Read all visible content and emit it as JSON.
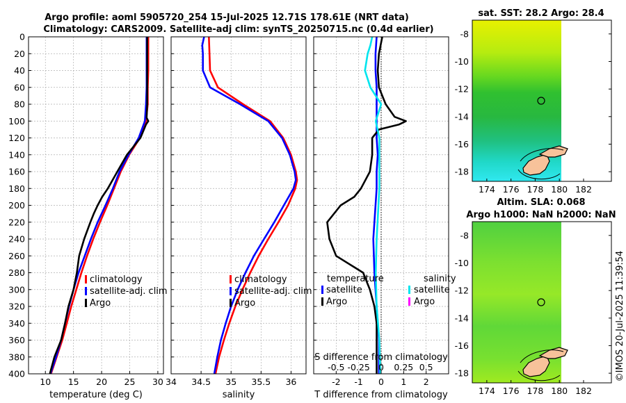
{
  "header": {
    "title_line1": "Argo profile: aoml 5905720_254 15-Jul-2025 12.71S 178.61E (NRT data)",
    "title_line2": "Climatology: CARS2009. Satellite-adj clim: synTS_20250715.nc (0.4d earlier)",
    "watermark": "©IMOS 20-Jul-2025 11:39:54"
  },
  "chart_data": [
    {
      "type": "line",
      "name": "temperature-panel",
      "xlabel": "temperature (deg C)",
      "ylabel": "",
      "xlim": [
        7,
        31
      ],
      "ylim": [
        400,
        0
      ],
      "xticks": [
        10,
        15,
        20,
        25,
        30
      ],
      "yticks": [
        0,
        20,
        40,
        60,
        80,
        100,
        120,
        140,
        160,
        180,
        200,
        220,
        240,
        260,
        280,
        300,
        320,
        340,
        360,
        380,
        400
      ],
      "grid": true,
      "legend": {
        "position": "lower-right",
        "entries": [
          "climatology",
          "satellite-adj. clim",
          "Argo"
        ]
      },
      "series": [
        {
          "name": "climatology",
          "color": "#ff0000",
          "depth": [
            0,
            20,
            40,
            60,
            80,
            100,
            120,
            140,
            160,
            180,
            200,
            220,
            240,
            260,
            280,
            300,
            320,
            340,
            360,
            380,
            400
          ],
          "values": [
            28.3,
            28.3,
            28.3,
            28.2,
            28.2,
            27.9,
            26.8,
            24.9,
            23.4,
            22.2,
            21.0,
            19.7,
            18.5,
            17.4,
            16.4,
            15.5,
            14.6,
            13.8,
            13.0,
            12.0,
            11.0
          ]
        },
        {
          "name": "satellite-adj. clim",
          "color": "#0000ff",
          "depth": [
            0,
            20,
            40,
            60,
            80,
            100,
            120,
            140,
            160,
            180,
            200,
            220,
            240,
            260,
            280,
            300,
            320,
            340,
            360,
            380,
            400
          ],
          "values": [
            28.0,
            28.0,
            28.0,
            28.0,
            27.9,
            27.7,
            26.6,
            24.8,
            23.2,
            22.0,
            20.7,
            19.3,
            18.1,
            17.0,
            15.9,
            15.0,
            14.2,
            13.5,
            12.8,
            11.9,
            10.9
          ]
        },
        {
          "name": "Argo",
          "color": "#000000",
          "depth": [
            0,
            20,
            40,
            60,
            80,
            96,
            100,
            104,
            120,
            140,
            160,
            180,
            190,
            200,
            210,
            220,
            240,
            260,
            280,
            300,
            320,
            340,
            360,
            380,
            400
          ],
          "values": [
            28.1,
            28.1,
            28.1,
            28.1,
            28.1,
            28.0,
            28.3,
            27.9,
            26.9,
            24.5,
            22.8,
            21.1,
            20.1,
            19.3,
            18.6,
            18.0,
            16.9,
            16.0,
            15.6,
            15.0,
            14.1,
            13.5,
            12.8,
            11.6,
            10.8
          ]
        }
      ]
    },
    {
      "type": "line",
      "name": "salinity-panel",
      "xlabel": "salinity",
      "xlim": [
        34.0,
        36.25
      ],
      "ylim": [
        400,
        0
      ],
      "xticks": [
        34,
        34.5,
        35,
        35.5,
        36
      ],
      "grid": true,
      "legend": {
        "position": "lower-right",
        "entries": [
          "climatology",
          "satellite-adj. clim",
          "Argo"
        ]
      },
      "series": [
        {
          "name": "climatology",
          "color": "#ff0000",
          "depth": [
            0,
            20,
            40,
            60,
            80,
            100,
            120,
            140,
            160,
            170,
            180,
            200,
            220,
            240,
            260,
            280,
            300,
            320,
            340,
            360,
            380,
            400
          ],
          "values": [
            34.63,
            34.64,
            34.65,
            34.78,
            35.2,
            35.65,
            35.87,
            36.0,
            36.08,
            36.1,
            36.07,
            35.95,
            35.79,
            35.62,
            35.46,
            35.32,
            35.19,
            35.07,
            34.97,
            34.88,
            34.8,
            34.74
          ]
        },
        {
          "name": "satellite-adj. clim",
          "color": "#0000ff",
          "depth": [
            0,
            10,
            20,
            40,
            60,
            80,
            100,
            120,
            140,
            160,
            170,
            180,
            200,
            220,
            240,
            260,
            280,
            300,
            320,
            340,
            360,
            380,
            400
          ],
          "values": [
            34.55,
            34.52,
            34.53,
            34.53,
            34.65,
            35.15,
            35.62,
            35.85,
            35.98,
            36.06,
            36.08,
            36.04,
            35.88,
            35.72,
            35.55,
            35.38,
            35.24,
            35.11,
            35.0,
            34.91,
            34.83,
            34.77,
            34.72
          ]
        }
      ]
    },
    {
      "type": "line",
      "name": "difference-panel",
      "xlabel": "T difference from climatology",
      "top_label": "S difference from climatology",
      "xlim": [
        -3,
        3
      ],
      "ylim": [
        400,
        0
      ],
      "xticks": [
        -2,
        -1,
        0,
        1,
        2
      ],
      "s_xticks": [
        "-0.5",
        "-0.25",
        "0",
        "0.25",
        "0.5"
      ],
      "grid": true,
      "legend_temperature_title": "temperature",
      "legend_salinity_title": "salinity",
      "legend_temperature": [
        "satellite",
        "Argo"
      ],
      "legend_salinity": [
        "satellite",
        "Argo"
      ],
      "series": [
        {
          "name": "T satellite",
          "color": "#0000ff",
          "depth": [
            0,
            20,
            40,
            60,
            80,
            100,
            120,
            140,
            160,
            180,
            200,
            240,
            280,
            320,
            360,
            400
          ],
          "values": [
            -0.2,
            -0.25,
            -0.25,
            -0.2,
            -0.2,
            -0.2,
            -0.2,
            -0.15,
            -0.2,
            -0.2,
            -0.25,
            -0.35,
            -0.3,
            -0.2,
            -0.1,
            -0.1
          ]
        },
        {
          "name": "T Argo",
          "color": "#000000",
          "depth": [
            0,
            20,
            40,
            60,
            80,
            95,
            100,
            104,
            110,
            120,
            140,
            160,
            180,
            190,
            200,
            220,
            240,
            260,
            280,
            300,
            320,
            340,
            360,
            380,
            400
          ],
          "values": [
            0.05,
            -0.1,
            -0.15,
            -0.1,
            0.2,
            0.6,
            1.1,
            0.8,
            -0.1,
            -0.4,
            -0.4,
            -0.5,
            -0.9,
            -1.2,
            -1.8,
            -2.4,
            -2.3,
            -2.0,
            -0.8,
            -0.5,
            -0.3,
            -0.2,
            -0.2,
            -0.2,
            -0.2
          ]
        },
        {
          "name": "S satellite",
          "color": "#00e5ee",
          "depth": [
            0,
            10,
            20,
            40,
            60,
            80,
            100,
            120,
            140,
            160,
            180,
            200,
            240,
            280,
            320,
            360,
            400
          ],
          "values": [
            -0.1,
            -0.12,
            -0.15,
            -0.18,
            -0.12,
            0.0,
            -0.06,
            -0.02,
            -0.02,
            -0.02,
            -0.02,
            -0.03,
            -0.05,
            -0.06,
            -0.05,
            -0.02,
            -0.01
          ]
        }
      ]
    }
  ],
  "maps": {
    "sst": {
      "title": "sat. SST: 28.2 Argo: 28.4",
      "xticks": [
        "174",
        "176",
        "178",
        "180",
        "182"
      ],
      "yticks": [
        "-8",
        "-10",
        "-12",
        "-14",
        "-16",
        "-18"
      ]
    },
    "sla": {
      "title_line1": "Altim. SLA: 0.068",
      "title_line2": "Argo h1000: NaN h2000: NaN",
      "xticks": [
        "174",
        "176",
        "178",
        "180",
        "182"
      ],
      "yticks": [
        "-8",
        "-10",
        "-12",
        "-14",
        "-16",
        "-18"
      ]
    }
  }
}
